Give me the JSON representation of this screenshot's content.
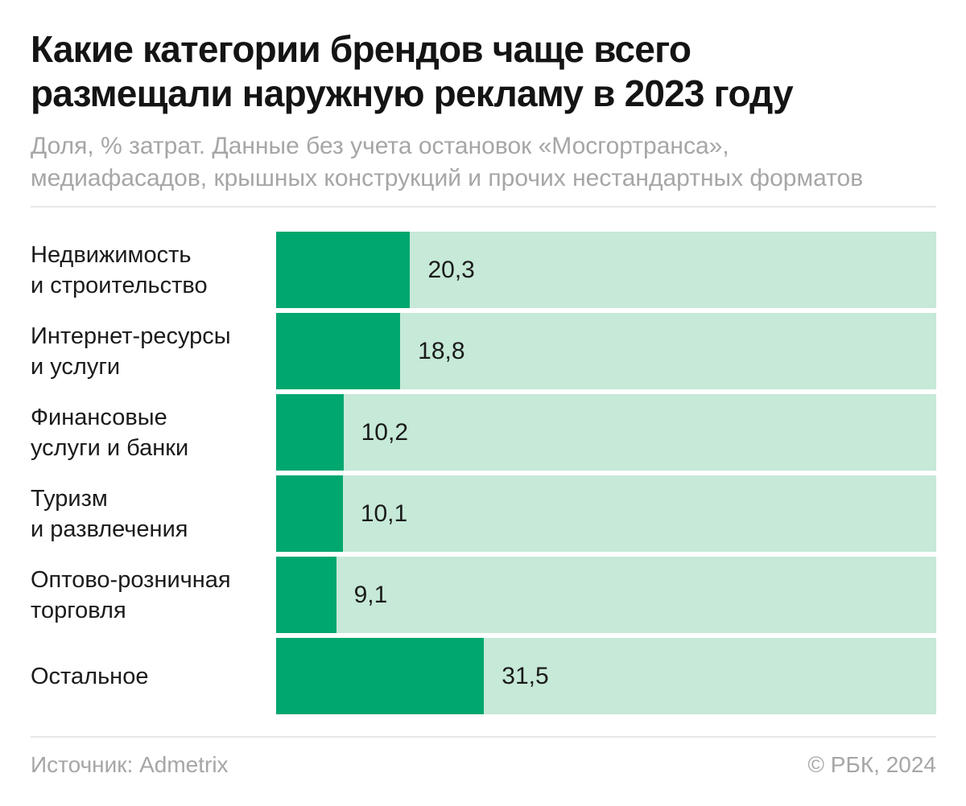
{
  "header": {
    "title_line1": "Какие категории брендов чаще всего",
    "title_line2": "размещали наружную рекламу в 2023 году",
    "subtitle_line1": "Доля, % затрат. Данные без учета остановок «Мосгортранса»,",
    "subtitle_line2": "медиафасадов, крышных конструкций и прочих нестандартных форматов"
  },
  "chart_data": {
    "type": "bar",
    "orientation": "horizontal",
    "title": "Какие категории брендов чаще всего размещали наружную рекламу в 2023 году",
    "subtitle": "Доля, % затрат. Данные без учета остановок «Мосгортранса», медиафасадов, крышных конструкций и прочих нестандартных форматов",
    "unit": "% затрат",
    "xlim": [
      0,
      100
    ],
    "grid": false,
    "legend": "none",
    "categories": [
      "Недвижимость\nи строительство",
      "Интернет-ресурсы\nи услуги",
      "Финансовые\nуслуги и банки",
      "Туризм\nи развлечения",
      "Оптово-розничная\nторговля",
      "Остальное"
    ],
    "values": [
      20.3,
      18.8,
      10.2,
      10.1,
      9.1,
      31.5
    ],
    "value_labels": [
      "20,3",
      "18,8",
      "10,2",
      "10,1",
      "9,1",
      "31,5"
    ],
    "colors": {
      "bar_fill": "#00a76e",
      "bar_track": "#c6e9d8",
      "text": "#1b1b1b",
      "muted_text": "#a6a6a6",
      "divider": "#e7e7e7"
    }
  },
  "footer": {
    "source": "Источник: Admetrix",
    "copyright": "© РБК, 2024"
  }
}
